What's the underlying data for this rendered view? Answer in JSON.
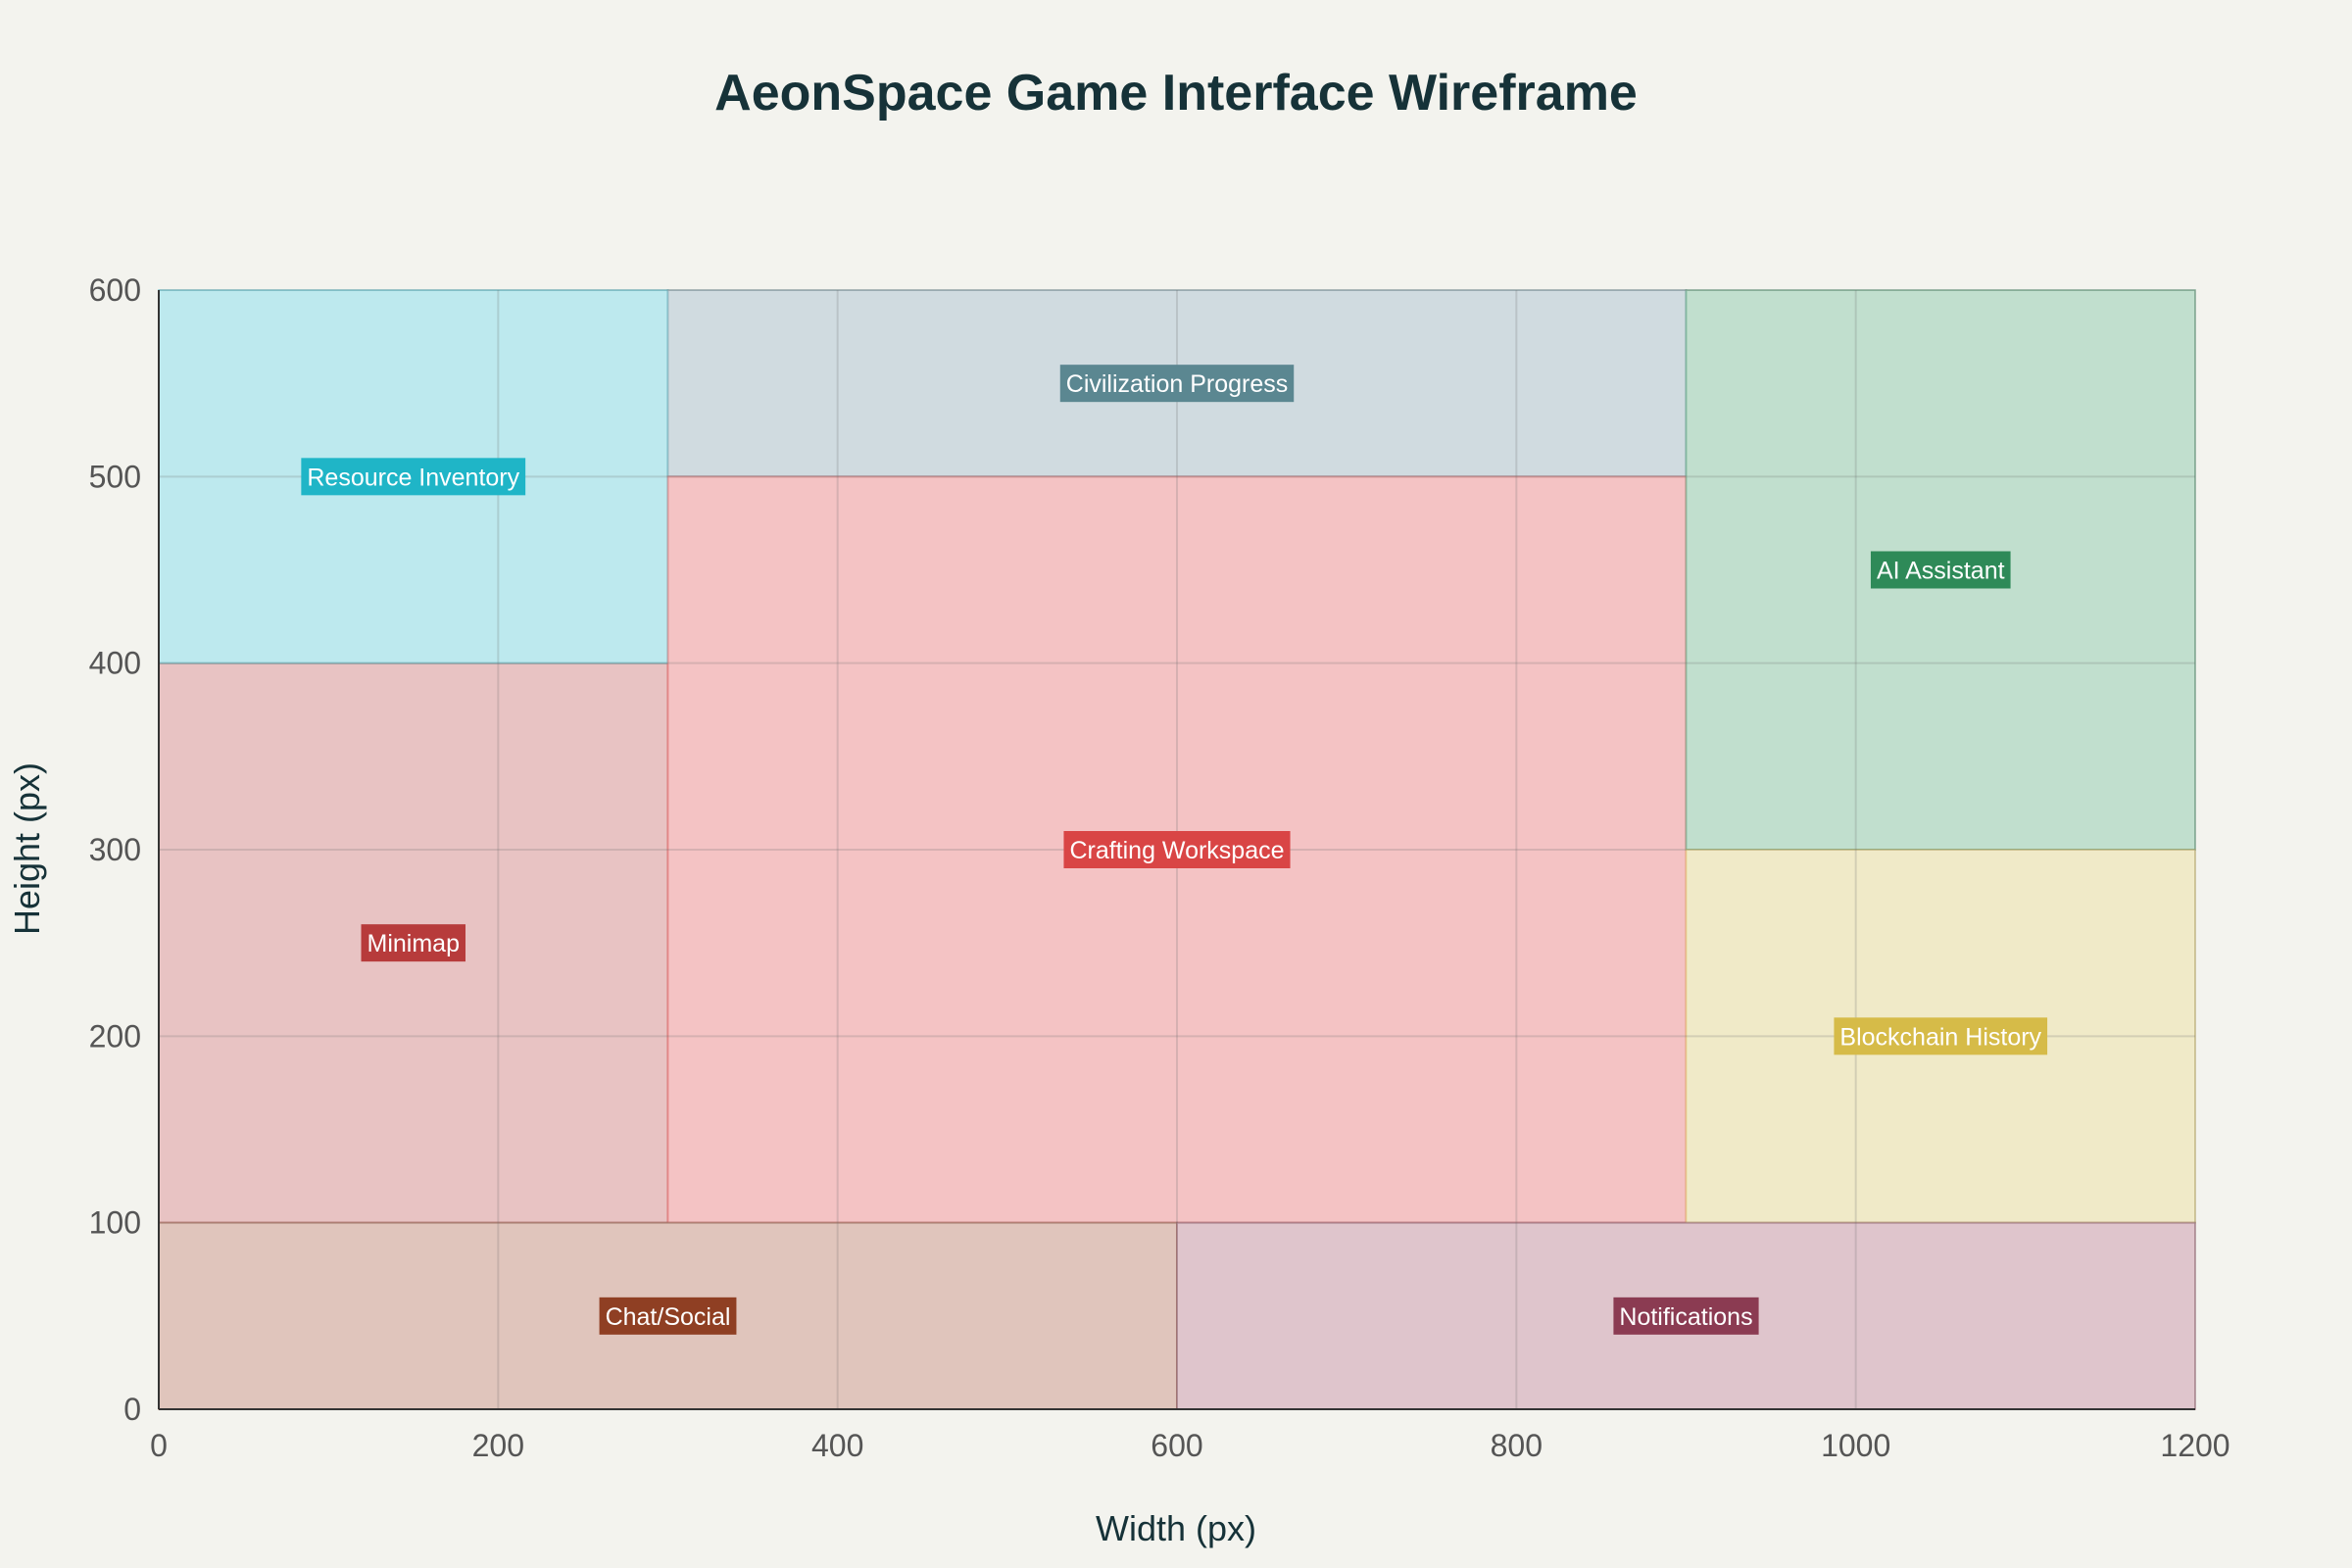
{
  "chart_data": {
    "type": "rect-layout",
    "title": "AeonSpace Game Interface Wireframe",
    "xlabel": "Width (px)",
    "ylabel": "Height (px)",
    "xlim": [
      0,
      1200
    ],
    "ylim": [
      0,
      600
    ],
    "xticks": [
      0,
      200,
      400,
      600,
      800,
      1000,
      1200
    ],
    "yticks": [
      0,
      100,
      200,
      300,
      400,
      500,
      600
    ],
    "grid": true,
    "regions": [
      {
        "id": "minimap",
        "label": "Minimap",
        "x0": 0,
        "x1": 300,
        "y0": 100,
        "y1": 400,
        "fill": "#e8c3c3",
        "label_bg": "#b73b3b",
        "label_x": 150,
        "label_y": 250
      },
      {
        "id": "resource-inventory",
        "label": "Resource Inventory",
        "x0": 0,
        "x1": 300,
        "y0": 400,
        "y1": 600,
        "fill": "#bde9ee",
        "label_bg": "#1fb5c7",
        "label_x": 150,
        "label_y": 500
      },
      {
        "id": "civilization-progress",
        "label": "Civilization Progress",
        "x0": 300,
        "x1": 900,
        "y0": 500,
        "y1": 600,
        "fill": "#d0dbe0",
        "label_bg": "#5b8791",
        "label_x": 600,
        "label_y": 550
      },
      {
        "id": "crafting-workspace",
        "label": "Crafting Workspace",
        "x0": 300,
        "x1": 900,
        "y0": 100,
        "y1": 500,
        "fill": "#f4c3c4",
        "label_bg": "#d94545",
        "label_x": 600,
        "label_y": 300
      },
      {
        "id": "ai-assistant",
        "label": "AI Assistant",
        "x0": 900,
        "x1": 1200,
        "y0": 300,
        "y1": 600,
        "fill": "#c1dfce",
        "label_bg": "#2e8a58",
        "label_x": 1050,
        "label_y": 450
      },
      {
        "id": "blockchain-history",
        "label": "Blockchain History",
        "x0": 900,
        "x1": 1200,
        "y0": 100,
        "y1": 300,
        "fill": "#f0eac8",
        "label_bg": "#d6bb48",
        "label_x": 1050,
        "label_y": 200
      },
      {
        "id": "chat-social",
        "label": "Chat/Social",
        "x0": 0,
        "x1": 600,
        "y0": 0,
        "y1": 100,
        "fill": "#e0c5bc",
        "label_bg": "#8f3f23",
        "label_x": 300,
        "label_y": 50
      },
      {
        "id": "notifications",
        "label": "Notifications",
        "x0": 600,
        "x1": 1200,
        "y0": 0,
        "y1": 100,
        "fill": "#dfc5cc",
        "label_bg": "#8b3b52",
        "label_x": 900,
        "label_y": 50
      }
    ]
  }
}
